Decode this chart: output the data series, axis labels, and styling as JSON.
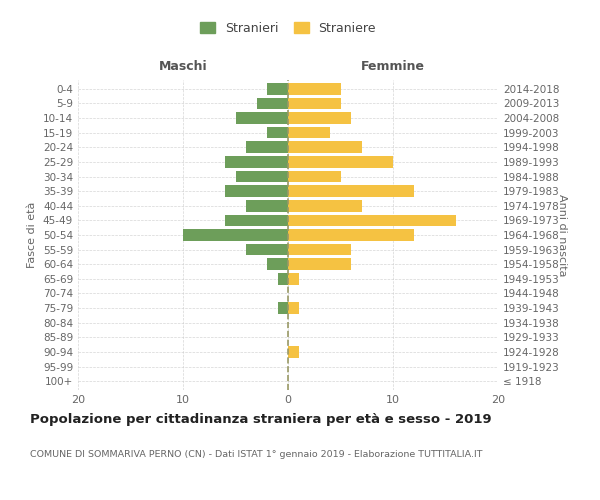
{
  "age_groups": [
    "100+",
    "95-99",
    "90-94",
    "85-89",
    "80-84",
    "75-79",
    "70-74",
    "65-69",
    "60-64",
    "55-59",
    "50-54",
    "45-49",
    "40-44",
    "35-39",
    "30-34",
    "25-29",
    "20-24",
    "15-19",
    "10-14",
    "5-9",
    "0-4"
  ],
  "birth_years": [
    "≤ 1918",
    "1919-1923",
    "1924-1928",
    "1929-1933",
    "1934-1938",
    "1939-1943",
    "1944-1948",
    "1949-1953",
    "1954-1958",
    "1959-1963",
    "1964-1968",
    "1969-1973",
    "1974-1978",
    "1979-1983",
    "1984-1988",
    "1989-1993",
    "1994-1998",
    "1999-2003",
    "2004-2008",
    "2009-2013",
    "2014-2018"
  ],
  "maschi": [
    0,
    0,
    0,
    0,
    0,
    1,
    0,
    1,
    2,
    4,
    10,
    6,
    4,
    6,
    5,
    6,
    4,
    2,
    5,
    3,
    2
  ],
  "femmine": [
    0,
    0,
    1,
    0,
    0,
    1,
    0,
    1,
    6,
    6,
    12,
    16,
    7,
    12,
    5,
    10,
    7,
    4,
    6,
    5,
    5
  ],
  "color_maschi": "#6d9e5a",
  "color_femmine": "#f5c242",
  "title": "Popolazione per cittadinanza straniera per età e sesso - 2019",
  "subtitle": "COMUNE DI SOMMARIVA PERNO (CN) - Dati ISTAT 1° gennaio 2019 - Elaborazione TUTTITALIA.IT",
  "xlabel_left": "Maschi",
  "xlabel_right": "Femmine",
  "ylabel_left": "Fasce di età",
  "ylabel_right": "Anni di nascita",
  "legend_maschi": "Stranieri",
  "legend_femmine": "Straniere",
  "xlim": 20,
  "background_color": "#ffffff",
  "grid_color": "#cccccc",
  "bar_height": 0.8,
  "dashed_line_color": "#999966"
}
